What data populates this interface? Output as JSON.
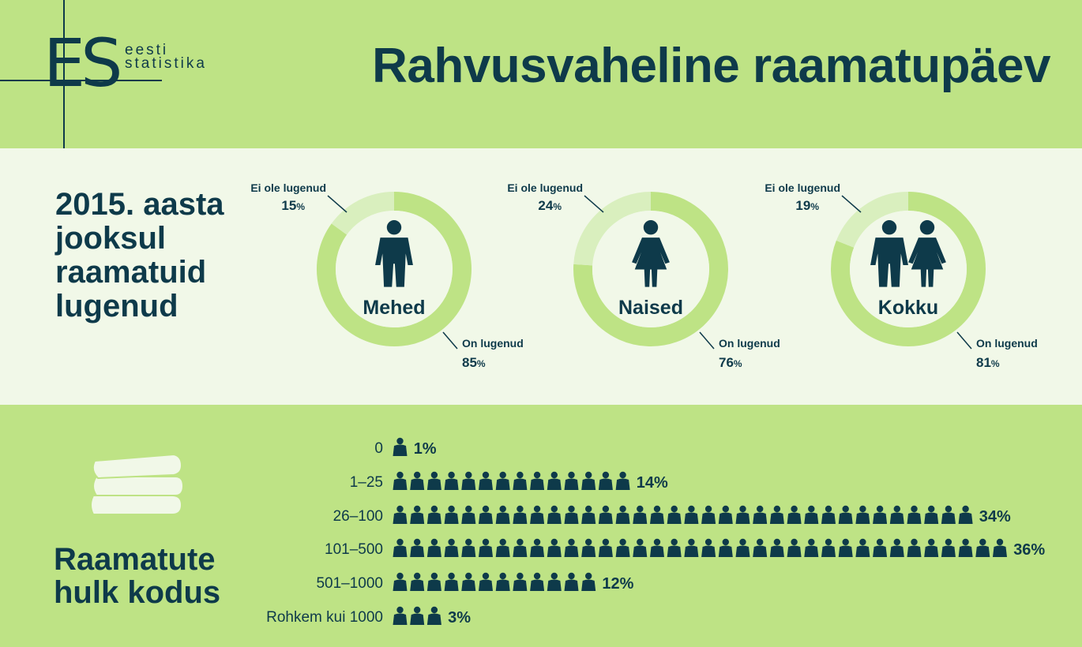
{
  "header": {
    "title": "Rahvusvaheline raamatupäev",
    "logo_word_1": "eesti",
    "logo_word_2": "statistika",
    "logo_mark": "ES"
  },
  "reading": {
    "title": "2015. aasta jooksul raamatuid lugenud",
    "labels": {
      "not_read": "Ei ole lugenud",
      "read": "On lugenud"
    },
    "groups": [
      {
        "name": "Mehed",
        "icon": "man-icon",
        "not_read": 15,
        "read": 85
      },
      {
        "name": "Naised",
        "icon": "woman-icon",
        "not_read": 24,
        "read": 76
      },
      {
        "name": "Kokku",
        "icon": "couple-icon",
        "not_read": 19,
        "read": 81
      }
    ]
  },
  "books": {
    "title": "Raamatute hulk kodus",
    "icon": "books-icon"
  },
  "chart_data": [
    {
      "type": "pie",
      "title": "2015. aasta jooksul raamatuid lugenud",
      "categories": [
        "Ei ole lugenud",
        "On lugenud"
      ],
      "series": [
        {
          "name": "Mehed",
          "values": [
            15,
            85
          ]
        },
        {
          "name": "Naised",
          "values": [
            24,
            76
          ]
        },
        {
          "name": "Kokku",
          "values": [
            19,
            81
          ]
        }
      ],
      "unit": "%"
    },
    {
      "type": "bar",
      "title": "Raamatute hulk kodus",
      "categories": [
        "0",
        "1–25",
        "26–100",
        "101–500",
        "501–1000",
        "Rohkem kui 1000"
      ],
      "values": [
        1,
        14,
        34,
        36,
        12,
        3
      ],
      "unit": "%"
    }
  ],
  "colors": {
    "dark": "#0e3a4a",
    "green": "#bee385",
    "light_ring": "#d9efbe",
    "panel": "#f1f8e8"
  }
}
